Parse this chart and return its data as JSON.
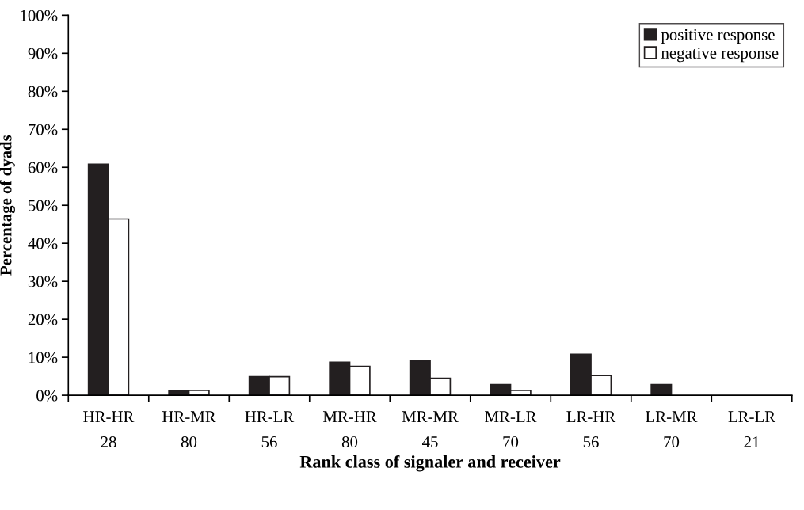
{
  "chart_data": {
    "type": "bar",
    "xlabel": "Rank class of signaler and receiver",
    "ylabel": "Percentage of dyads",
    "categories": [
      "HR-HR\n28",
      "HR-MR\n80",
      "HR-LR\n56",
      "MR-HR\n80",
      "MR-MR\n45",
      "MR-LR\n70",
      "LR-HR\n56",
      "LR-MR\n70",
      "LR-LR\n21"
    ],
    "series": [
      {
        "name": "positive response",
        "color": "#231f20",
        "values": [
          60.8,
          1.3,
          4.9,
          8.7,
          9.1,
          2.8,
          10.8,
          2.8,
          0
        ]
      },
      {
        "name": "negative response",
        "color": "#ffffff",
        "values": [
          46.4,
          1.3,
          4.9,
          7.6,
          4.5,
          1.3,
          5.2,
          0,
          0
        ]
      }
    ],
    "ylim": [
      0,
      100
    ],
    "yticks": [
      {
        "value": 0,
        "label": "0%"
      },
      {
        "value": 10,
        "label": "10%"
      },
      {
        "value": 20,
        "label": "20%"
      },
      {
        "value": 30,
        "label": "30%"
      },
      {
        "value": 40,
        "label": "40%"
      },
      {
        "value": 50,
        "label": "50%"
      },
      {
        "value": 60,
        "label": "60%"
      },
      {
        "value": 70,
        "label": "70%"
      },
      {
        "value": 80,
        "label": "80%"
      },
      {
        "value": 90,
        "label": "90%"
      },
      {
        "value": 100,
        "label": "100%"
      }
    ],
    "grid": false,
    "legend": "top right"
  }
}
